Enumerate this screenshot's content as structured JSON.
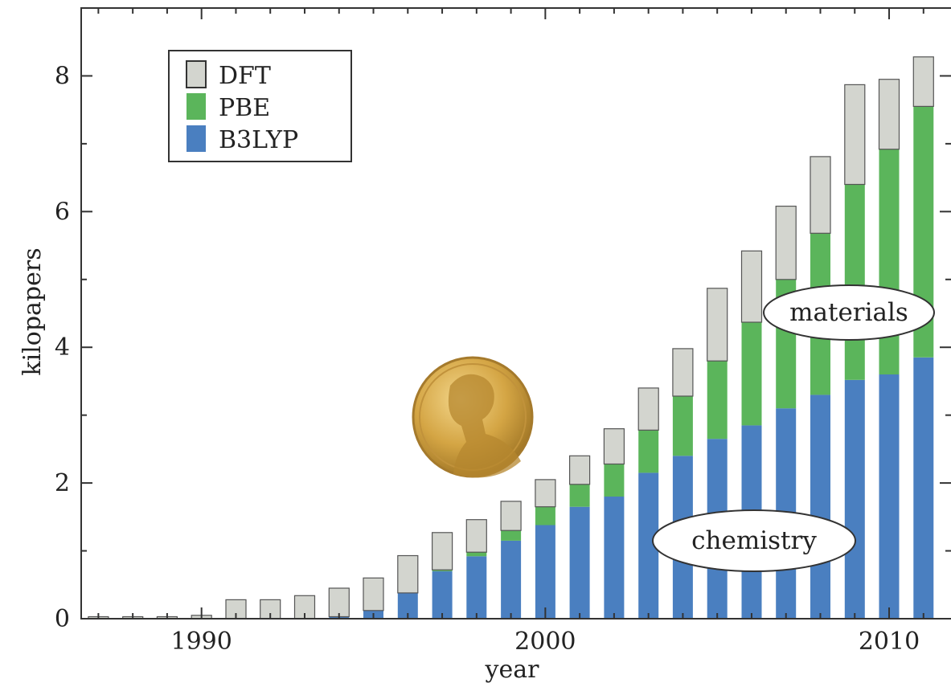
{
  "chart_data": {
    "type": "bar",
    "stacked": true,
    "xlabel": "year",
    "ylabel": "kilopapers",
    "xlim": [
      1986.5,
      2011.8
    ],
    "ylim": [
      0,
      9
    ],
    "x_ticks": [
      1990,
      2000,
      2010
    ],
    "y_ticks": [
      0,
      2,
      4,
      6,
      8
    ],
    "grid": false,
    "legend_position": "top-left",
    "legend": [
      "DFT",
      "PBE",
      "B3LYP"
    ],
    "x": [
      1987,
      1988,
      1989,
      1990,
      1991,
      1992,
      1993,
      1994,
      1995,
      1996,
      1997,
      1998,
      1999,
      2000,
      2001,
      2002,
      2003,
      2004,
      2005,
      2006,
      2007,
      2008,
      2009,
      2010,
      2011
    ],
    "series": [
      {
        "name": "B3LYP",
        "color": "#4a7fc0",
        "values": [
          0,
          0,
          0,
          0,
          0,
          0,
          0,
          0.03,
          0.12,
          0.38,
          0.7,
          0.92,
          1.15,
          1.38,
          1.65,
          1.8,
          2.15,
          2.4,
          2.65,
          2.85,
          3.1,
          3.3,
          3.52,
          3.6,
          3.85
        ]
      },
      {
        "name": "PBE",
        "color": "#5bb55b",
        "values": [
          0,
          0,
          0,
          0,
          0,
          0,
          0,
          0,
          0,
          0,
          0.02,
          0.06,
          0.15,
          0.27,
          0.33,
          0.48,
          0.63,
          0.88,
          1.15,
          1.52,
          1.9,
          2.38,
          2.88,
          3.32,
          3.7
        ]
      },
      {
        "name": "DFT",
        "color": "#d3d5cf",
        "values": [
          0.03,
          0.03,
          0.03,
          0.05,
          0.28,
          0.28,
          0.34,
          0.42,
          0.48,
          0.55,
          0.55,
          0.48,
          0.43,
          0.4,
          0.42,
          0.52,
          0.62,
          0.7,
          1.07,
          1.05,
          1.08,
          1.13,
          1.47,
          1.03,
          0.73
        ]
      }
    ],
    "annotations": [
      "materials",
      "chemistry"
    ]
  }
}
